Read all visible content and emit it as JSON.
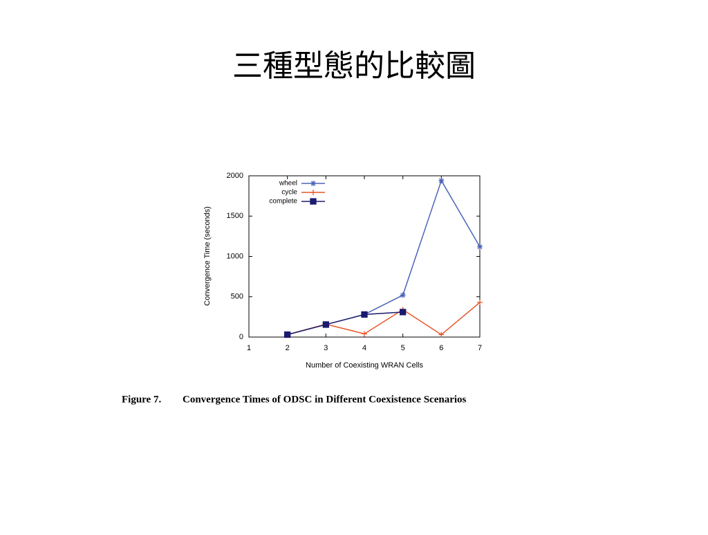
{
  "slide": {
    "title": "三種型態的比較圖"
  },
  "chart_data": {
    "type": "line",
    "x_label": "Number of Coexisting WRAN Cells",
    "y_label": "Convergence Time (seconds)",
    "x": [
      2,
      3,
      4,
      5,
      6,
      7
    ],
    "xlim": [
      1,
      7
    ],
    "xticks": [
      1,
      2,
      3,
      4,
      5,
      6,
      7
    ],
    "ylim": [
      0,
      2000
    ],
    "yticks": [
      0,
      500,
      1000,
      1500,
      2000
    ],
    "legend": "top-left",
    "series": [
      {
        "name": "wheel",
        "color": "#4a64b8",
        "marker": "star",
        "values": [
          30,
          155,
          280,
          520,
          1940,
          1120
        ]
      },
      {
        "name": "cycle",
        "color": "#e8562a",
        "marker": "plus",
        "values": [
          30,
          160,
          40,
          340,
          30,
          430
        ]
      },
      {
        "name": "complete",
        "color": "#1a1a6e",
        "marker": "square",
        "values": [
          30,
          155,
          280,
          310,
          null,
          null
        ]
      }
    ]
  },
  "caption": {
    "label": "Figure 7.",
    "text": "Convergence Times of ODSC in Different Coexistence Scenarios"
  }
}
